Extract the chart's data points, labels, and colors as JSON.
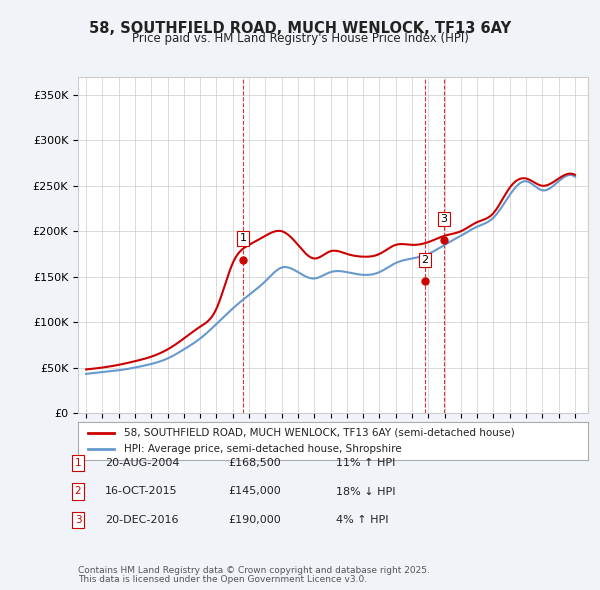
{
  "title": "58, SOUTHFIELD ROAD, MUCH WENLOCK, TF13 6AY",
  "subtitle": "Price paid vs. HM Land Registry's House Price Index (HPI)",
  "legend_line1": "58, SOUTHFIELD ROAD, MUCH WENLOCK, TF13 6AY (semi-detached house)",
  "legend_line2": "HPI: Average price, semi-detached house, Shropshire",
  "footer1": "Contains HM Land Registry data © Crown copyright and database right 2025.",
  "footer2": "This data is licensed under the Open Government Licence v3.0.",
  "transactions": [
    {
      "label": "1",
      "date": "20-AUG-2004",
      "price": "£168,500",
      "hpi": "11% ↑ HPI",
      "year": 2004.64
    },
    {
      "label": "2",
      "date": "16-OCT-2015",
      "price": "£145,000",
      "hpi": "18% ↓ HPI",
      "year": 2015.79
    },
    {
      "label": "3",
      "date": "20-DEC-2016",
      "price": "£190,000",
      "hpi": "4% ↑ HPI",
      "year": 2016.97
    }
  ],
  "price_color": "#cc0000",
  "hpi_color": "#6699cc",
  "vline_color": "#cc0000",
  "marker_colors": [
    "#cc0000",
    "#cc0000",
    "#cc0000"
  ],
  "ylim": [
    0,
    370000
  ],
  "yticks": [
    0,
    50000,
    100000,
    150000,
    200000,
    250000,
    300000,
    350000
  ],
  "xlim_start": 1994.5,
  "xlim_end": 2025.8,
  "background_color": "#f0f4f8",
  "plot_bg": "#ffffff",
  "grid_color": "#cccccc",
  "hpi_data_years": [
    1995,
    1996,
    1997,
    1998,
    1999,
    2000,
    2001,
    2002,
    2003,
    2004,
    2005,
    2006,
    2007,
    2008,
    2009,
    2010,
    2011,
    2012,
    2013,
    2014,
    2015,
    2016,
    2017,
    2018,
    2019,
    2020,
    2021,
    2022,
    2023,
    2024,
    2025
  ],
  "hpi_values": [
    43000,
    45000,
    47000,
    50000,
    54000,
    60000,
    70000,
    82000,
    98000,
    115000,
    130000,
    145000,
    160000,
    155000,
    148000,
    155000,
    155000,
    152000,
    155000,
    165000,
    170000,
    175000,
    185000,
    195000,
    205000,
    215000,
    240000,
    255000,
    245000,
    255000,
    260000
  ],
  "price_data_years": [
    1995,
    1996,
    1997,
    1998,
    1999,
    2000,
    2001,
    2002,
    2003,
    2004,
    2005,
    2006,
    2007,
    2008,
    2009,
    2010,
    2011,
    2012,
    2013,
    2014,
    2015,
    2016,
    2017,
    2018,
    2019,
    2020,
    2021,
    2022,
    2023,
    2024,
    2025
  ],
  "price_data_values": [
    48000,
    50000,
    53000,
    57000,
    62000,
    70000,
    82000,
    95000,
    115000,
    165000,
    185000,
    195000,
    200000,
    185000,
    170000,
    178000,
    175000,
    172000,
    175000,
    185000,
    185000,
    188000,
    195000,
    200000,
    210000,
    220000,
    248000,
    258000,
    250000,
    258000,
    262000
  ]
}
